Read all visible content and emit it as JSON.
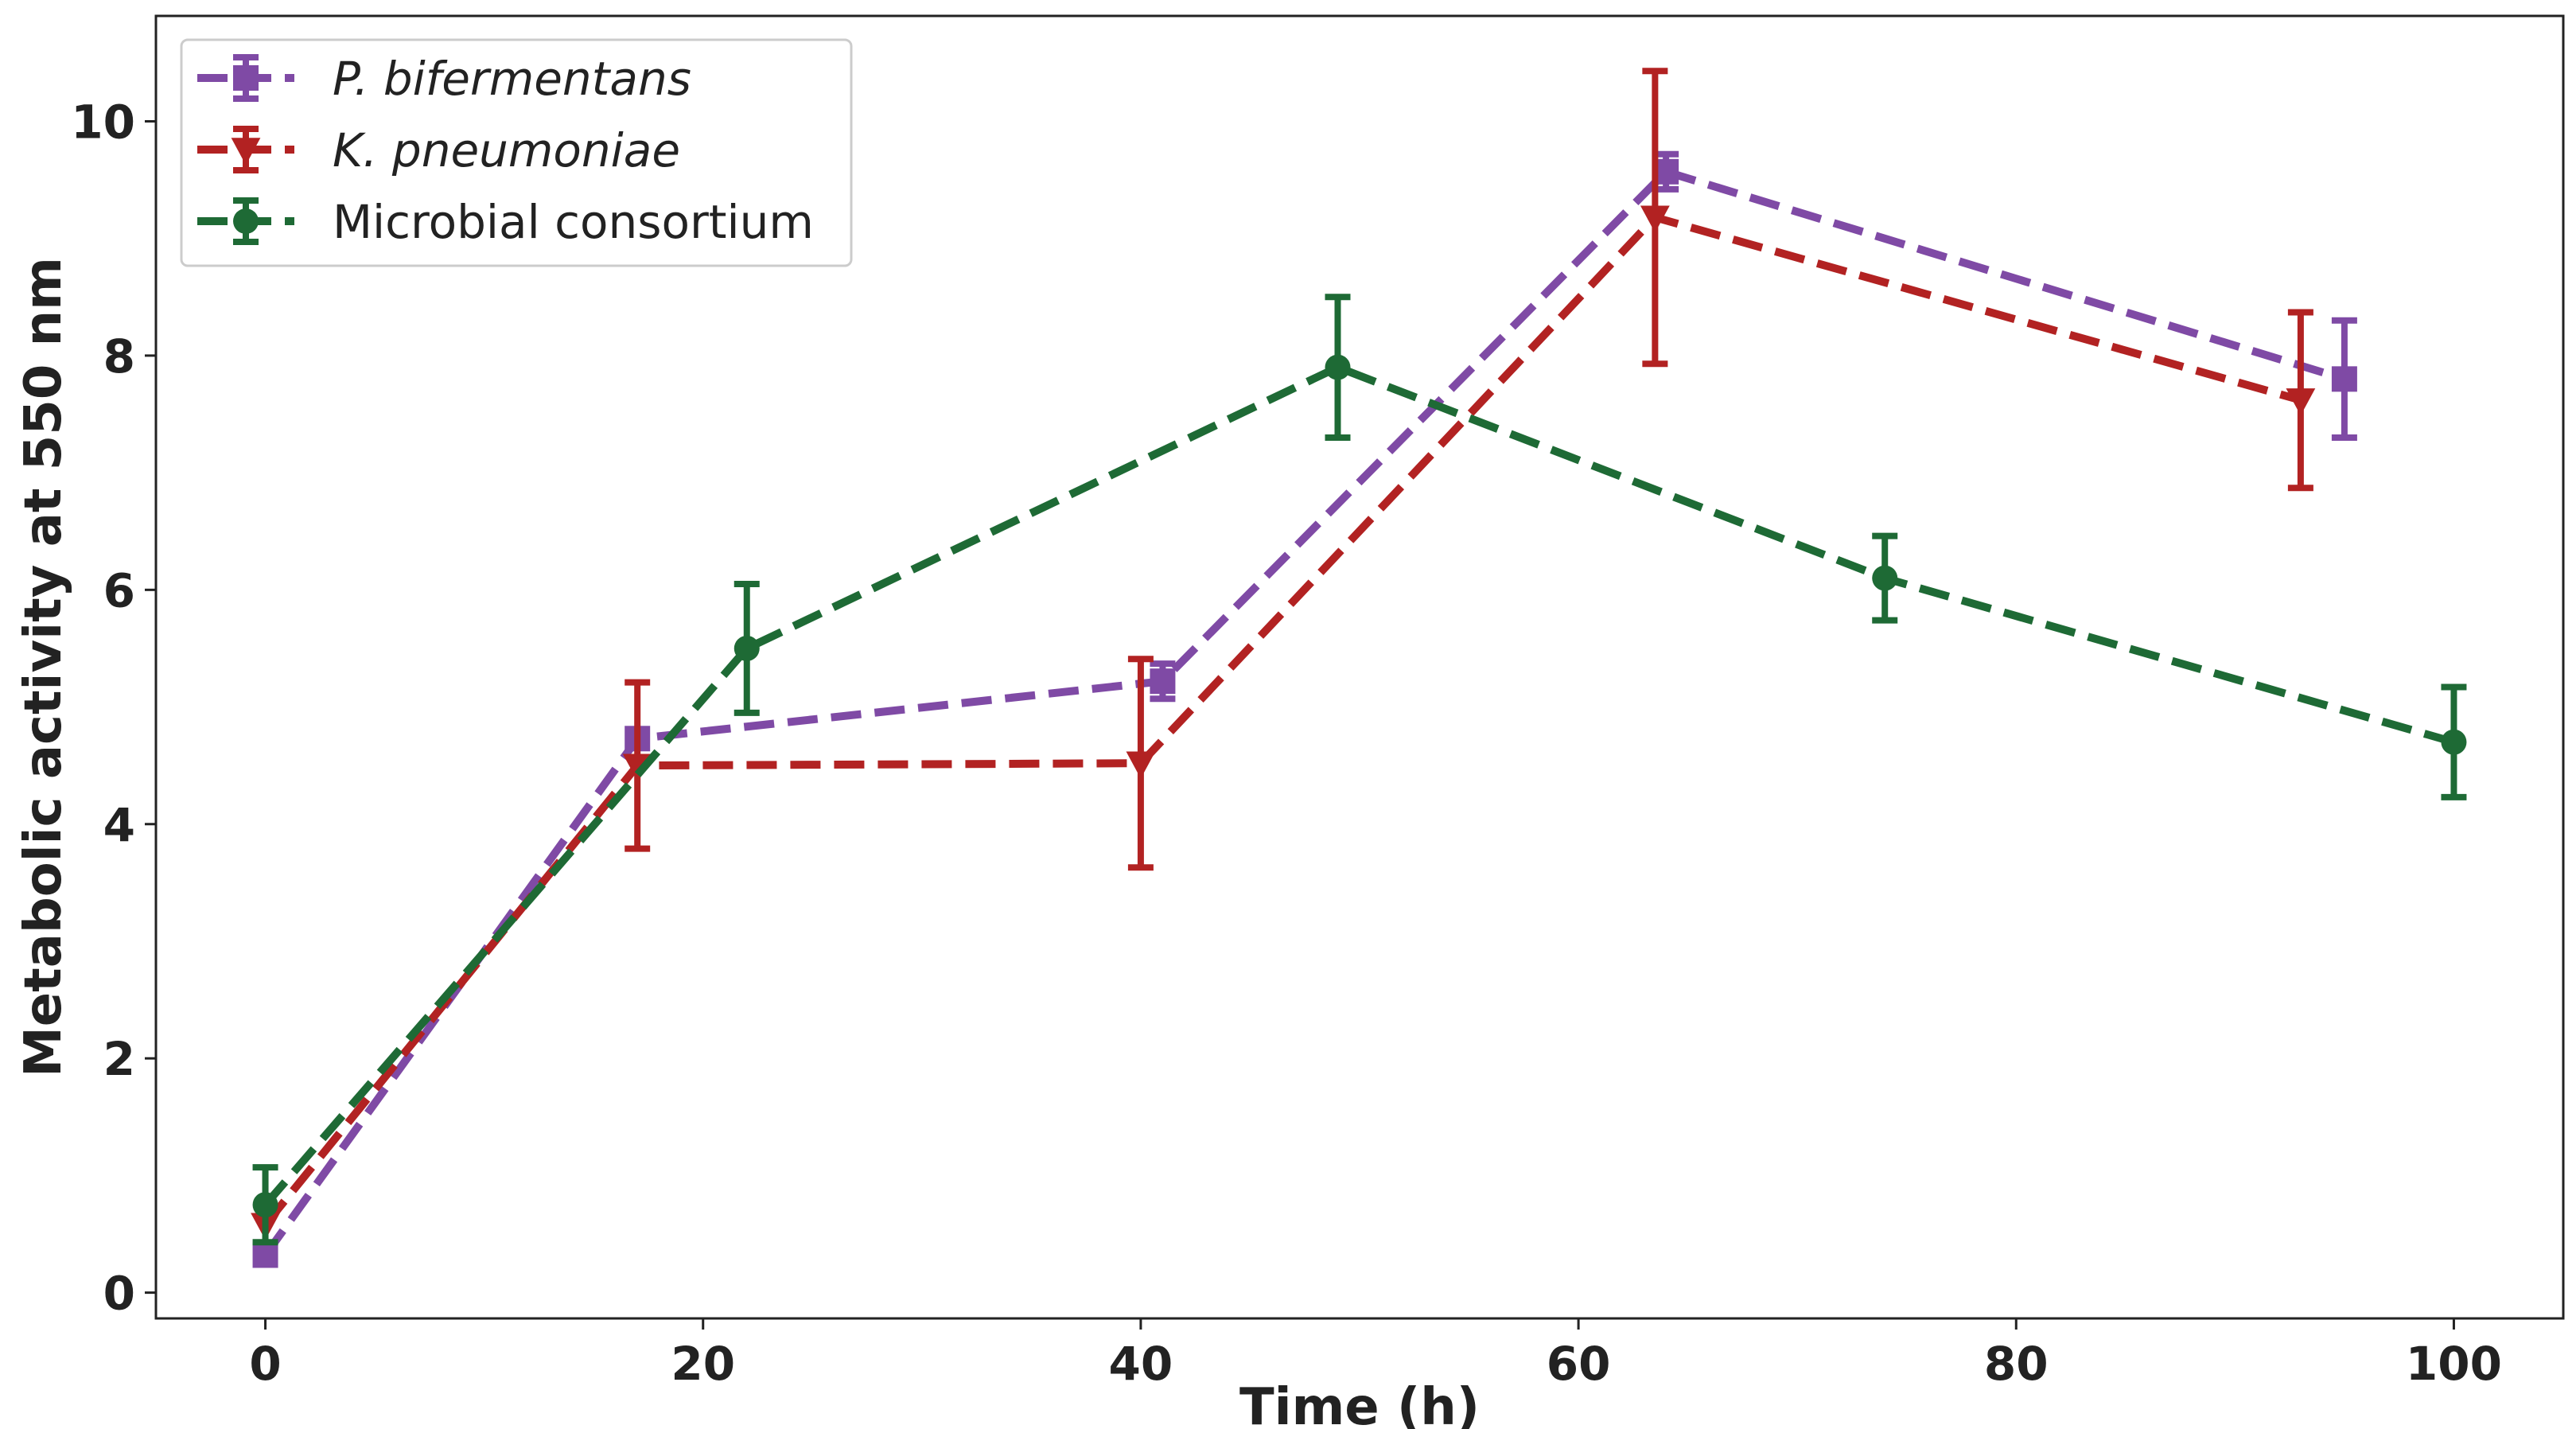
{
  "chart_data": {
    "type": "line",
    "xlabel": "Time (h)",
    "ylabel": "Metabolic activity at 550 nm",
    "xlim": [
      -5,
      105
    ],
    "ylim": [
      -0.22,
      10.9
    ],
    "xticks": [
      0,
      20,
      40,
      60,
      80,
      100
    ],
    "yticks": [
      0,
      2,
      4,
      6,
      8,
      10
    ],
    "grid": false,
    "legend_position": "top-left",
    "series": [
      {
        "name": "P. bifermentans",
        "italic": true,
        "color": "#7f4aa5",
        "marker": "square",
        "line_style": "dashed",
        "x": [
          0,
          17,
          41,
          64,
          95
        ],
        "y": [
          0.32,
          4.73,
          5.22,
          9.57,
          7.8
        ],
        "err": [
          0.0,
          0.0,
          0.15,
          0.15,
          0.5
        ]
      },
      {
        "name": "K. pneumoniae",
        "italic": true,
        "color": "#b22222",
        "marker": "triangle-down",
        "line_style": "dashed",
        "x": [
          0,
          17,
          40,
          63.5,
          93
        ],
        "y": [
          0.58,
          4.5,
          4.52,
          9.18,
          7.62
        ],
        "err": [
          0.0,
          0.71,
          0.89,
          1.25,
          0.75
        ]
      },
      {
        "name": "Microbial consortium",
        "italic": false,
        "color": "#1e6a35",
        "marker": "circle",
        "line_style": "dashed",
        "x": [
          0,
          22,
          49,
          74,
          100
        ],
        "y": [
          0.75,
          5.5,
          7.9,
          6.1,
          4.7
        ],
        "err": [
          0.32,
          0.55,
          0.6,
          0.36,
          0.47
        ]
      }
    ]
  }
}
